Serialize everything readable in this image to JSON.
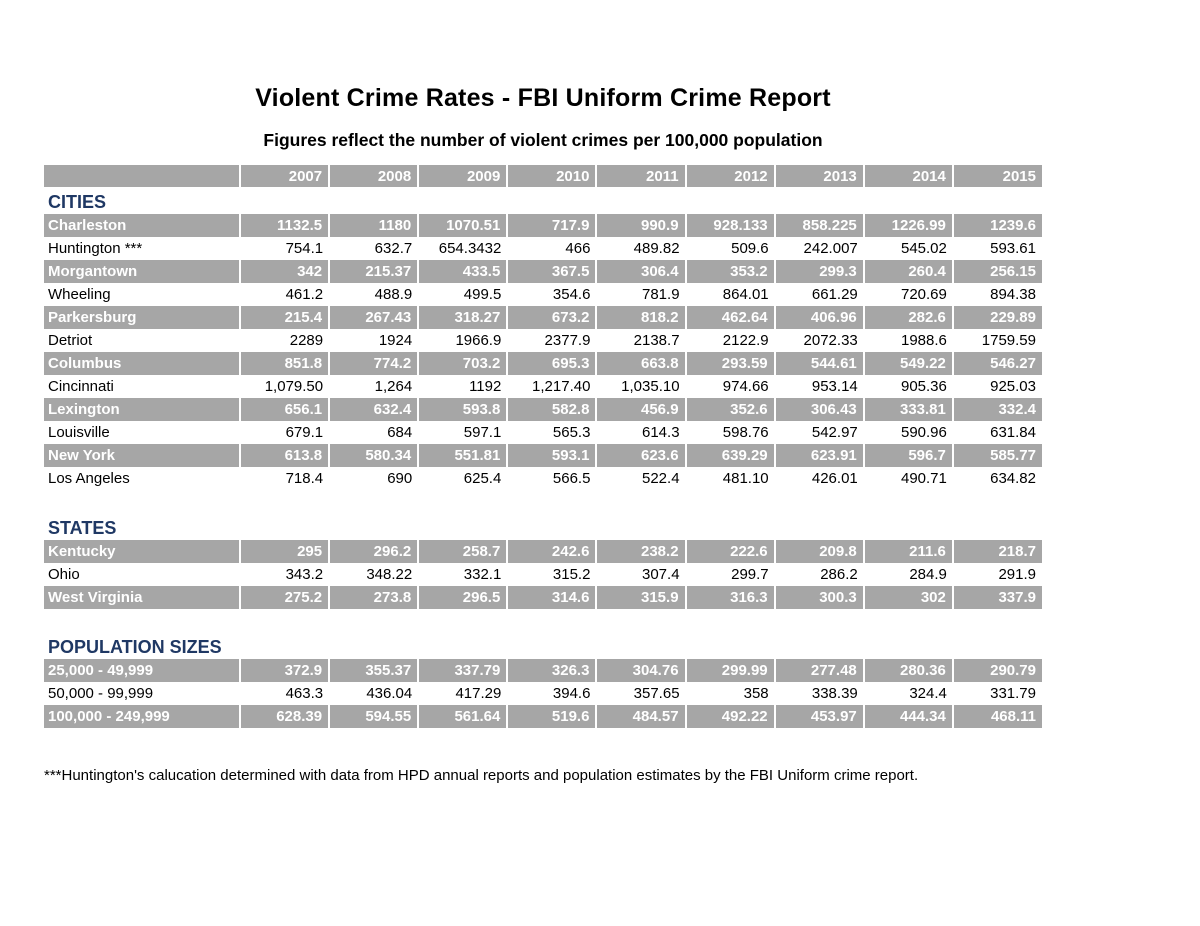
{
  "title": "Violent Crime Rates - FBI Uniform Crime Report",
  "subtitle": "Figures reflect the number of violent crimes per 100,000 population",
  "years": [
    "2007",
    "2008",
    "2009",
    "2010",
    "2011",
    "2012",
    "2013",
    "2014",
    "2015"
  ],
  "sections": [
    {
      "label": "CITIES",
      "rows": [
        {
          "name": "Charleston",
          "shaded": true,
          "values": [
            "1132.5",
            "1180",
            "1070.51",
            "717.9",
            "990.9",
            "928.133",
            "858.225",
            "1226.99",
            "1239.6"
          ]
        },
        {
          "name": "Huntington ***",
          "shaded": false,
          "values": [
            "754.1",
            "632.7",
            "654.3432",
            "466",
            "489.82",
            "509.6",
            "242.007",
            "545.02",
            "593.61"
          ]
        },
        {
          "name": "Morgantown",
          "shaded": true,
          "values": [
            "342",
            "215.37",
            "433.5",
            "367.5",
            "306.4",
            "353.2",
            "299.3",
            "260.4",
            "256.15"
          ]
        },
        {
          "name": "Wheeling",
          "shaded": false,
          "values": [
            "461.2",
            "488.9",
            "499.5",
            "354.6",
            "781.9",
            "864.01",
            "661.29",
            "720.69",
            "894.38"
          ]
        },
        {
          "name": "Parkersburg",
          "shaded": true,
          "values": [
            "215.4",
            "267.43",
            "318.27",
            "673.2",
            "818.2",
            "462.64",
            "406.96",
            "282.6",
            "229.89"
          ]
        },
        {
          "name": "Detriot",
          "shaded": false,
          "values": [
            "2289",
            "1924",
            "1966.9",
            "2377.9",
            "2138.7",
            "2122.9",
            "2072.33",
            "1988.6",
            "1759.59"
          ]
        },
        {
          "name": "Columbus",
          "shaded": true,
          "values": [
            "851.8",
            "774.2",
            "703.2",
            "695.3",
            "663.8",
            "293.59",
            "544.61",
            "549.22",
            "546.27"
          ]
        },
        {
          "name": "Cincinnati",
          "shaded": false,
          "values": [
            "1,079.50",
            "1,264",
            "1192",
            "1,217.40",
            "1,035.10",
            "974.66",
            "953.14",
            "905.36",
            "925.03"
          ]
        },
        {
          "name": "Lexington",
          "shaded": true,
          "values": [
            "656.1",
            "632.4",
            "593.8",
            "582.8",
            "456.9",
            "352.6",
            "306.43",
            "333.81",
            "332.4"
          ]
        },
        {
          "name": "Louisville",
          "shaded": false,
          "values": [
            "679.1",
            "684",
            "597.1",
            "565.3",
            "614.3",
            "598.76",
            "542.97",
            "590.96",
            "631.84"
          ]
        },
        {
          "name": "New York",
          "shaded": true,
          "values": [
            "613.8",
            "580.34",
            "551.81",
            "593.1",
            "623.6",
            "639.29",
            "623.91",
            "596.7",
            "585.77"
          ]
        },
        {
          "name": "Los Angeles",
          "shaded": false,
          "values": [
            "718.4",
            "690",
            "625.4",
            "566.5",
            "522.4",
            "481.10",
            "426.01",
            "490.71",
            "634.82"
          ]
        }
      ]
    },
    {
      "label": "STATES",
      "rows": [
        {
          "name": "Kentucky",
          "shaded": true,
          "values": [
            "295",
            "296.2",
            "258.7",
            "242.6",
            "238.2",
            "222.6",
            "209.8",
            "211.6",
            "218.7"
          ]
        },
        {
          "name": "Ohio",
          "shaded": false,
          "values": [
            "343.2",
            "348.22",
            "332.1",
            "315.2",
            "307.4",
            "299.7",
            "286.2",
            "284.9",
            "291.9"
          ]
        },
        {
          "name": "West Virginia",
          "shaded": true,
          "values": [
            "275.2",
            "273.8",
            "296.5",
            "314.6",
            "315.9",
            "316.3",
            "300.3",
            "302",
            "337.9"
          ]
        }
      ]
    },
    {
      "label": "POPULATION SIZES",
      "rows": [
        {
          "name": "25,000 - 49,999",
          "shaded": true,
          "values": [
            "372.9",
            "355.37",
            "337.79",
            "326.3",
            "304.76",
            "299.99",
            "277.48",
            "280.36",
            "290.79"
          ]
        },
        {
          "name": "50,000 - 99,999",
          "shaded": false,
          "values": [
            "463.3",
            "436.04",
            "417.29",
            "394.6",
            "357.65",
            "358",
            "338.39",
            "324.4",
            "331.79"
          ]
        },
        {
          "name": "100,000 - 249,999",
          "shaded": true,
          "values": [
            "628.39",
            "594.55",
            "561.64",
            "519.6",
            "484.57",
            "492.22",
            "453.97",
            "444.34",
            "468.11"
          ]
        }
      ]
    }
  ],
  "footnote": "***Huntington's calucation determined with data from HPD annual reports and population estimates by the FBI Uniform crime report.",
  "colors": {
    "band": "#a6a6a6",
    "band_text": "#ffffff",
    "section_heading": "#1f3864",
    "text": "#000000",
    "background": "#ffffff"
  }
}
